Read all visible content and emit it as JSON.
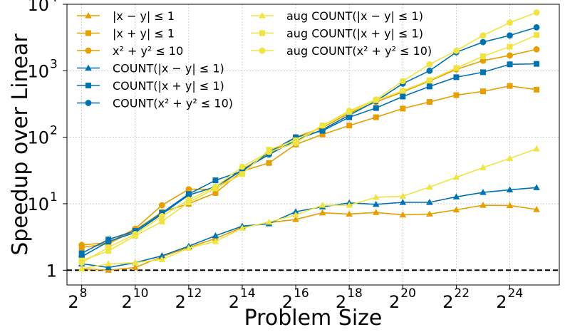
{
  "chart_data": {
    "type": "line",
    "title": "",
    "xlabel": "Problem Size",
    "ylabel": "Speedup over Linear",
    "xscale": "log2",
    "yscale": "log10",
    "xlim": [
      7.45,
      25.85
    ],
    "ylim": [
      0.6,
      10000
    ],
    "x": [
      8,
      9,
      10,
      11,
      12,
      13,
      14,
      15,
      16,
      17,
      18,
      19,
      20,
      21,
      22,
      23,
      24,
      25
    ],
    "x_ticks": [
      8,
      10,
      12,
      14,
      16,
      18,
      20,
      22,
      24
    ],
    "x_tick_base": "2",
    "y_ticks": [
      {
        "exp": 0,
        "base": "1",
        "sup": ""
      },
      {
        "exp": 1,
        "base": "10",
        "sup": "1"
      },
      {
        "exp": 2,
        "base": "10",
        "sup": "2"
      },
      {
        "exp": 3,
        "base": "10",
        "sup": "3"
      },
      {
        "exp": 4,
        "base": "10",
        "sup": "4"
      }
    ],
    "baseline": {
      "y": 1,
      "style": "dashed",
      "color": "#000000"
    },
    "legend_position": "top-left, two columns",
    "series": [
      {
        "name": "|x − y| ≤ 1",
        "color": "#E69F00",
        "marker": "triangle",
        "values": [
          1.05,
          1.0,
          1.1,
          1.6,
          2.2,
          3.0,
          4.4,
          5.2,
          5.8,
          7.3,
          7.0,
          7.4,
          6.8,
          7.0,
          8.1,
          9.5,
          9.4,
          8.2
        ]
      },
      {
        "name": "|x + y| ≤ 1",
        "color": "#E69F00",
        "marker": "square",
        "values": [
          2.2,
          2.5,
          4.0,
          7.5,
          10.0,
          14.5,
          31,
          41,
          78,
          110,
          150,
          200,
          270,
          340,
          430,
          490,
          590,
          520
        ]
      },
      {
        "name": "x² + y² ≤ 10",
        "color": "#E69F00",
        "marker": "circle",
        "values": [
          2.4,
          2.6,
          4.2,
          9.5,
          16.5,
          16.5,
          33,
          56,
          100,
          140,
          230,
          340,
          480,
          700,
          1050,
          1420,
          1700,
          2100
        ]
      },
      {
        "name": "COUNT(|x − y| ≤ 1)",
        "color": "#0072B2",
        "marker": "triangle",
        "values": [
          1.25,
          1.1,
          1.3,
          1.65,
          2.3,
          3.3,
          4.6,
          5.0,
          7.6,
          9.0,
          10.3,
          9.8,
          10.5,
          10.5,
          12.7,
          14.8,
          16.2,
          17.5
        ]
      },
      {
        "name": "COUNT(|x + y| ≤ 1)",
        "color": "#0072B2",
        "marker": "square",
        "values": [
          1.8,
          2.9,
          3.9,
          7.3,
          14,
          22.5,
          31,
          60,
          100,
          125,
          200,
          275,
          410,
          580,
          800,
          950,
          1250,
          1270
        ]
      },
      {
        "name": "COUNT(x² + y² ≤ 10)",
        "color": "#0072B2",
        "marker": "circle",
        "values": [
          1.6,
          2.7,
          3.7,
          7.0,
          13.5,
          18,
          32,
          55,
          90,
          130,
          215,
          350,
          640,
          1000,
          1900,
          2700,
          3400,
          4500
        ]
      },
      {
        "name": "aug COUNT(|x − y| ≤ 1)",
        "color": "#F0E442",
        "marker": "triangle",
        "values": [
          1.05,
          1.25,
          1.3,
          1.45,
          2.15,
          2.7,
          4.3,
          5.3,
          6.8,
          9.5,
          9.5,
          12.5,
          13.0,
          17.8,
          25,
          35,
          48,
          67
        ]
      },
      {
        "name": "aug COUNT(|x + y| ≤ 1)",
        "color": "#F0E442",
        "marker": "square",
        "values": [
          1.4,
          1.95,
          3.3,
          5.4,
          10.5,
          17,
          28,
          65,
          90,
          150,
          240,
          360,
          500,
          720,
          1100,
          1650,
          2300,
          3450
        ]
      },
      {
        "name": "aug COUNT(x² + y² ≤ 10)",
        "color": "#F0E442",
        "marker": "circle",
        "values": [
          1.3,
          2.2,
          3.5,
          6.5,
          11.5,
          18,
          36,
          60,
          82,
          150,
          250,
          370,
          700,
          1250,
          2000,
          3400,
          5300,
          7500
        ]
      }
    ]
  }
}
